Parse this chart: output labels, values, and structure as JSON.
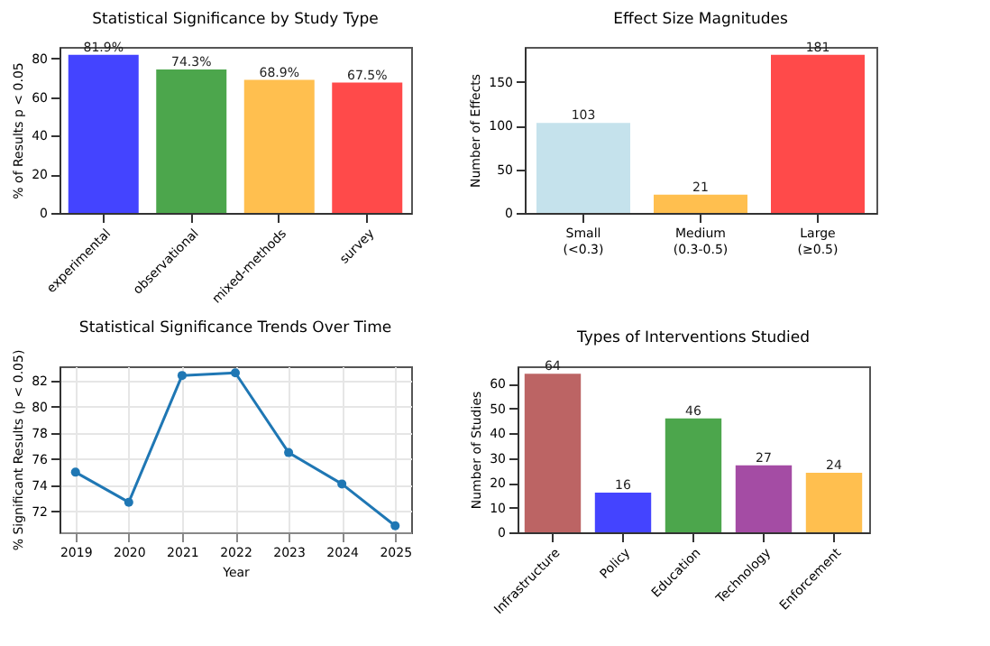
{
  "chart_data": [
    {
      "type": "bar",
      "title": "Statistical Significance by Study Type",
      "ylabel": "% of Results p < 0.05",
      "categories": [
        "experimental",
        "observational",
        "mixed-methods",
        "survey"
      ],
      "values": [
        81.9,
        74.3,
        68.9,
        67.5
      ],
      "colors": [
        "#4444ff",
        "#4ca64c",
        "#ffbf4f",
        "#ff4a4a"
      ],
      "value_labels": [
        "81.9%",
        "74.3%",
        "68.9%",
        "67.5%"
      ],
      "ylim": [
        0,
        86
      ],
      "yticks": [
        0,
        20,
        40,
        60,
        80
      ]
    },
    {
      "type": "bar",
      "title": "Effect Size Magnitudes",
      "ylabel": "Number of Effects",
      "categories": [
        "Small\n(<0.3)",
        "Medium\n(0.3-0.5)",
        "Large\n(≥0.5)"
      ],
      "values": [
        103,
        21,
        181
      ],
      "colors": [
        "#c5e2ec",
        "#ffbf4f",
        "#ff4a4a"
      ],
      "data_labels": true,
      "ylim": [
        0,
        190
      ],
      "yticks": [
        0,
        50,
        100,
        150
      ]
    },
    {
      "type": "line",
      "title": "Statistical Significance Trends Over Time",
      "xlabel": "Year",
      "ylabel": "% Significant Results (p < 0.05)",
      "x": [
        2019,
        2020,
        2021,
        2022,
        2023,
        2024,
        2025
      ],
      "series": [
        {
          "color": "#1f77b4",
          "values": [
            75.0,
            72.7,
            82.4,
            82.6,
            76.5,
            74.1,
            70.9
          ]
        }
      ],
      "xlim": [
        2018.7,
        2025.3
      ],
      "xticks": [
        2019,
        2020,
        2021,
        2022,
        2023,
        2024,
        2025
      ],
      "ylim": [
        70.4,
        83.1
      ],
      "yticks": [
        72,
        74,
        76,
        78,
        80,
        82
      ],
      "grid": true,
      "marker": "circle"
    },
    {
      "type": "bar",
      "title": "Types of Interventions Studied",
      "ylabel": "Number of Studies",
      "categories": [
        "Infrastructure",
        "Policy",
        "Education",
        "Technology",
        "Enforcement"
      ],
      "values": [
        64,
        16,
        46,
        27,
        24
      ],
      "colors": [
        "#bc6464",
        "#4444ff",
        "#4ca64c",
        "#a44ca4",
        "#ffbf4f"
      ],
      "data_labels": true,
      "ylim": [
        0,
        67
      ],
      "yticks": [
        0,
        10,
        20,
        30,
        40,
        50,
        60
      ]
    }
  ]
}
